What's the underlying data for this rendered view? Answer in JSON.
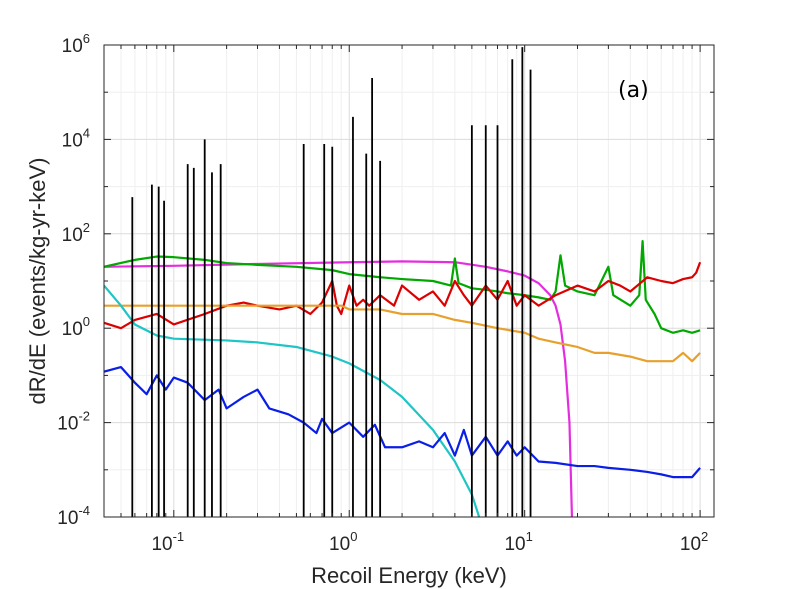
{
  "chart_data": {
    "type": "line",
    "title": "",
    "annotation": "(a)",
    "xlabel": "Recoil Energy (keV)",
    "ylabel": "dR/dE (events/kg-yr-keV)",
    "xscale": "log",
    "yscale": "log",
    "xlim": [
      0.04,
      120
    ],
    "ylim": [
      0.0001,
      1000000
    ],
    "grid": true,
    "legend": "none",
    "x_ticks": [
      {
        "base": "10",
        "exp": "-1",
        "value": 0.1
      },
      {
        "base": "10",
        "exp": "0",
        "value": 1
      },
      {
        "base": "10",
        "exp": "1",
        "value": 10
      },
      {
        "base": "10",
        "exp": "2",
        "value": 100
      }
    ],
    "y_ticks": [
      {
        "base": "10",
        "exp": "-4",
        "value": 0.0001
      },
      {
        "base": "10",
        "exp": "-2",
        "value": 0.01
      },
      {
        "base": "10",
        "exp": "0",
        "value": 1
      },
      {
        "base": "10",
        "exp": "2",
        "value": 100
      },
      {
        "base": "10",
        "exp": "4",
        "value": 10000
      },
      {
        "base": "10",
        "exp": "6",
        "value": 1000000
      }
    ],
    "series": [
      {
        "color": "#e52de0",
        "style": "line",
        "points": [
          [
            0.04,
            20
          ],
          [
            0.1,
            21
          ],
          [
            0.3,
            23
          ],
          [
            1,
            25
          ],
          [
            2,
            26
          ],
          [
            4,
            25
          ],
          [
            6,
            20
          ],
          [
            8,
            16
          ],
          [
            10,
            13
          ],
          [
            12,
            9
          ],
          [
            14,
            5
          ],
          [
            15,
            3
          ],
          [
            16,
            1.2
          ],
          [
            17,
            0.2
          ],
          [
            18,
            0.01
          ],
          [
            18.6,
            0.0001
          ]
        ]
      },
      {
        "color": "#00a800",
        "style": "line",
        "points": [
          [
            0.04,
            20
          ],
          [
            0.06,
            28
          ],
          [
            0.08,
            33
          ],
          [
            0.1,
            32
          ],
          [
            0.15,
            28
          ],
          [
            0.2,
            24
          ],
          [
            0.3,
            22
          ],
          [
            0.5,
            20
          ],
          [
            0.8,
            17
          ],
          [
            1,
            14
          ],
          [
            1.5,
            12
          ],
          [
            2,
            11
          ],
          [
            3,
            10
          ],
          [
            3.8,
            8
          ],
          [
            4,
            30
          ],
          [
            4.2,
            9
          ],
          [
            5,
            7
          ],
          [
            6,
            6.5
          ],
          [
            7,
            6
          ],
          [
            8,
            5.5
          ],
          [
            10,
            5
          ],
          [
            12,
            4.5
          ],
          [
            14,
            4
          ],
          [
            15,
            6
          ],
          [
            16,
            35
          ],
          [
            17,
            8
          ],
          [
            20,
            6
          ],
          [
            25,
            5
          ],
          [
            30,
            20
          ],
          [
            32,
            5
          ],
          [
            40,
            3
          ],
          [
            45,
            5
          ],
          [
            47,
            70
          ],
          [
            49,
            4
          ],
          [
            55,
            2
          ],
          [
            60,
            1
          ],
          [
            70,
            0.8
          ],
          [
            80,
            0.9
          ],
          [
            90,
            0.8
          ],
          [
            100,
            0.9
          ]
        ]
      },
      {
        "color": "#dd0000",
        "style": "line",
        "points": [
          [
            0.04,
            1.3
          ],
          [
            0.05,
            1.0
          ],
          [
            0.06,
            1.5
          ],
          [
            0.08,
            2.0
          ],
          [
            0.1,
            1.2
          ],
          [
            0.15,
            2.0
          ],
          [
            0.2,
            3.0
          ],
          [
            0.25,
            3.5
          ],
          [
            0.3,
            3.0
          ],
          [
            0.4,
            2.5
          ],
          [
            0.5,
            3.0
          ],
          [
            0.6,
            2.0
          ],
          [
            0.7,
            3.5
          ],
          [
            0.8,
            10
          ],
          [
            0.85,
            3
          ],
          [
            0.9,
            2
          ],
          [
            1,
            8
          ],
          [
            1.1,
            3
          ],
          [
            1.2,
            4
          ],
          [
            1.3,
            3
          ],
          [
            1.5,
            5
          ],
          [
            1.8,
            3
          ],
          [
            2,
            8
          ],
          [
            2.5,
            4
          ],
          [
            3,
            6
          ],
          [
            3.5,
            3
          ],
          [
            4,
            10
          ],
          [
            4.5,
            5
          ],
          [
            5,
            3
          ],
          [
            6,
            8
          ],
          [
            7,
            4
          ],
          [
            8,
            10
          ],
          [
            9,
            3
          ],
          [
            10,
            5
          ],
          [
            12,
            3
          ],
          [
            15,
            5
          ],
          [
            20,
            8
          ],
          [
            25,
            6
          ],
          [
            30,
            10
          ],
          [
            35,
            8
          ],
          [
            40,
            6
          ],
          [
            50,
            12
          ],
          [
            60,
            10
          ],
          [
            70,
            9
          ],
          [
            80,
            11
          ],
          [
            90,
            12
          ],
          [
            95,
            15
          ],
          [
            100,
            25
          ]
        ]
      },
      {
        "color": "#e8a02c",
        "style": "line",
        "points": [
          [
            0.04,
            3.0
          ],
          [
            0.1,
            3.0
          ],
          [
            0.3,
            3.0
          ],
          [
            0.7,
            3.0
          ],
          [
            0.9,
            3.0
          ],
          [
            1,
            2.5
          ],
          [
            1.5,
            2.5
          ],
          [
            2,
            2.0
          ],
          [
            3,
            2.0
          ],
          [
            4,
            1.5
          ],
          [
            5,
            1.3
          ],
          [
            7,
            1.0
          ],
          [
            10,
            0.8
          ],
          [
            12,
            0.6
          ],
          [
            15,
            0.5
          ],
          [
            20,
            0.4
          ],
          [
            25,
            0.3
          ],
          [
            30,
            0.3
          ],
          [
            40,
            0.25
          ],
          [
            50,
            0.2
          ],
          [
            60,
            0.2
          ],
          [
            70,
            0.2
          ],
          [
            80,
            0.3
          ],
          [
            90,
            0.2
          ],
          [
            100,
            0.3
          ]
        ]
      },
      {
        "color": "#1fc4c4",
        "style": "line",
        "points": [
          [
            0.04,
            8
          ],
          [
            0.05,
            3
          ],
          [
            0.06,
            1.2
          ],
          [
            0.08,
            0.7
          ],
          [
            0.1,
            0.6
          ],
          [
            0.2,
            0.55
          ],
          [
            0.3,
            0.5
          ],
          [
            0.5,
            0.4
          ],
          [
            0.8,
            0.25
          ],
          [
            1,
            0.18
          ],
          [
            1.5,
            0.08
          ],
          [
            2,
            0.035
          ],
          [
            3,
            0.007
          ],
          [
            4,
            0.0015
          ],
          [
            5,
            0.0003
          ],
          [
            5.5,
            0.0001
          ]
        ]
      },
      {
        "color": "#0a1ee6",
        "style": "line",
        "points": [
          [
            0.04,
            0.12
          ],
          [
            0.05,
            0.15
          ],
          [
            0.06,
            0.07
          ],
          [
            0.07,
            0.04
          ],
          [
            0.08,
            0.1
          ],
          [
            0.09,
            0.05
          ],
          [
            0.1,
            0.09
          ],
          [
            0.12,
            0.07
          ],
          [
            0.15,
            0.03
          ],
          [
            0.18,
            0.05
          ],
          [
            0.2,
            0.02
          ],
          [
            0.25,
            0.035
          ],
          [
            0.3,
            0.05
          ],
          [
            0.35,
            0.02
          ],
          [
            0.45,
            0.015
          ],
          [
            0.55,
            0.01
          ],
          [
            0.65,
            0.006
          ],
          [
            0.7,
            0.012
          ],
          [
            0.8,
            0.006
          ],
          [
            1,
            0.01
          ],
          [
            1.2,
            0.005
          ],
          [
            1.4,
            0.009
          ],
          [
            1.6,
            0.003
          ],
          [
            2,
            0.003
          ],
          [
            2.5,
            0.004
          ],
          [
            3,
            0.003
          ],
          [
            3.5,
            0.006
          ],
          [
            4,
            0.002
          ],
          [
            4.5,
            0.007
          ],
          [
            5,
            0.002
          ],
          [
            6,
            0.005
          ],
          [
            7,
            0.002
          ],
          [
            8,
            0.004
          ],
          [
            9,
            0.002
          ],
          [
            10,
            0.003
          ],
          [
            12,
            0.0015
          ],
          [
            15,
            0.0014
          ],
          [
            20,
            0.0012
          ],
          [
            25,
            0.0012
          ],
          [
            30,
            0.0011
          ],
          [
            40,
            0.001
          ],
          [
            50,
            0.0009
          ],
          [
            60,
            0.0008
          ],
          [
            70,
            0.0007
          ],
          [
            80,
            0.0007
          ],
          [
            90,
            0.0007
          ],
          [
            100,
            0.0011
          ]
        ]
      },
      {
        "color": "#000000",
        "style": "spikes",
        "baseline": 0.0001,
        "spikes": [
          [
            0.058,
            600
          ],
          [
            0.075,
            1100
          ],
          [
            0.082,
            1000
          ],
          [
            0.088,
            500
          ],
          [
            0.12,
            3000
          ],
          [
            0.13,
            2500
          ],
          [
            0.15,
            10000
          ],
          [
            0.165,
            2000
          ],
          [
            0.185,
            3000
          ],
          [
            0.55,
            8000
          ],
          [
            0.72,
            8000
          ],
          [
            0.8,
            7000
          ],
          [
            1.05,
            30000
          ],
          [
            1.25,
            5000
          ],
          [
            1.35,
            200000
          ],
          [
            1.5,
            3500
          ],
          [
            5.0,
            20000
          ],
          [
            6.0,
            20000
          ],
          [
            7.0,
            20000
          ],
          [
            8.5,
            500000
          ],
          [
            9.7,
            900000
          ],
          [
            10.8,
            300000
          ]
        ]
      }
    ]
  }
}
